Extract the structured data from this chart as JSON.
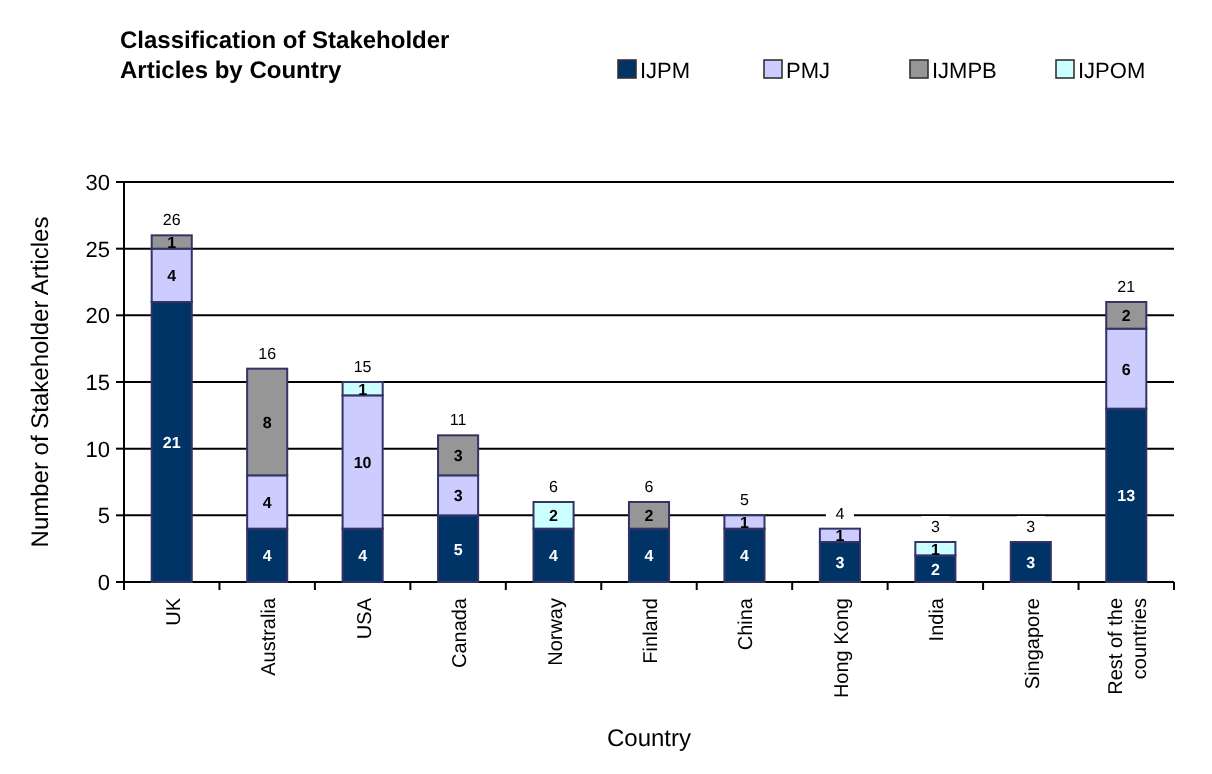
{
  "chart_data": {
    "type": "bar",
    "stacked": true,
    "title": "Classification of Stakeholder Articles by Country",
    "xlabel": "Country",
    "ylabel": "Number of Stakeholder Articles",
    "categories": [
      "UK",
      "Australia",
      "USA",
      "Canada",
      "Norway",
      "Finland",
      "China",
      "Hong Kong",
      "India",
      "Singapore",
      "Rest of the countries"
    ],
    "series": [
      {
        "name": "IJPM",
        "color": "#003366",
        "values": [
          21,
          4,
          4,
          5,
          4,
          4,
          4,
          3,
          2,
          3,
          13
        ]
      },
      {
        "name": "PMJ",
        "color": "#ccccff",
        "values": [
          4,
          4,
          10,
          3,
          null,
          null,
          1,
          1,
          null,
          null,
          6
        ]
      },
      {
        "name": "IJMPB",
        "color": "#969696",
        "values": [
          1,
          8,
          null,
          3,
          null,
          2,
          null,
          null,
          null,
          null,
          2
        ]
      },
      {
        "name": "IJPOM",
        "color": "#ccffff",
        "values": [
          null,
          null,
          1,
          null,
          2,
          null,
          null,
          null,
          1,
          null,
          null
        ]
      }
    ],
    "totals": [
      "26",
      "16",
      "15",
      "11",
      "6",
      "6",
      "5",
      "4",
      "3",
      "3",
      "21"
    ],
    "data_labels": true,
    "ylim": [
      0,
      30
    ],
    "yticks": [
      0,
      5,
      10,
      15,
      20,
      25,
      30
    ],
    "grid": "y",
    "legend": "top right"
  }
}
